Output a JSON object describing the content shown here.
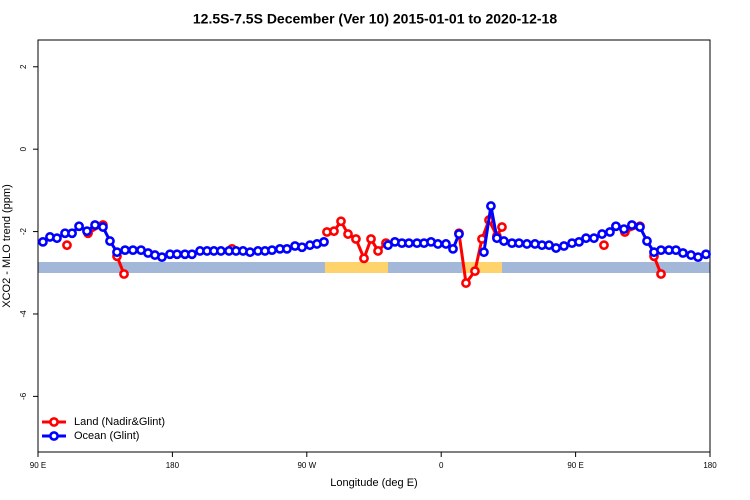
{
  "chart_data": {
    "type": "line",
    "title": "12.5S-7.5S December (Ver 10)   2015-01-01 to 2020-12-18",
    "x_label": "Longitude (deg E)",
    "y_label": "XCO2 - MLO trend (ppm)",
    "xlim": [
      90,
      540
    ],
    "ylim": [
      -7.35,
      2.65
    ],
    "xticks": [
      {
        "value": 90,
        "label": "90 E"
      },
      180,
      {
        "value": 270,
        "label": "90 W"
      },
      {
        "value": 360,
        "label": "0"
      },
      {
        "value": 450,
        "label": "90 E"
      },
      {
        "value": 540,
        "label": "180"
      }
    ],
    "yticks": [
      2,
      0,
      -2,
      -4,
      -6
    ],
    "legend": "bottom-left",
    "series": [
      {
        "name": "Land (Nadir&Glint)",
        "color": "#ff0000",
        "x": [
          109.4,
          null,
          123.5,
          133.5,
          null,
          142.9,
          147.6,
          null,
          219.9,
          null,
          283.5,
          288.2,
          292.9,
          297.6,
          302.9,
          308.3,
          313.0,
          317.7,
          323.0,
          null,
          371.9,
          376.6,
          382.6,
          387.3,
          392.0,
          397.3,
          400.7,
          null,
          469.0,
          null,
          483.0,
          493.1,
          null,
          502.5,
          507.2
        ],
        "values": [
          -2.33,
          null,
          -2.04,
          -1.84,
          null,
          -2.6,
          -3.03,
          null,
          -2.42,
          null,
          -2.01,
          -1.99,
          -1.75,
          -2.06,
          -2.18,
          -2.65,
          -2.18,
          -2.47,
          -2.28,
          null,
          -2.04,
          -3.25,
          -2.96,
          -2.18,
          -1.72,
          -2.11,
          -1.89,
          null,
          -2.33,
          null,
          -2.01,
          -1.87,
          null,
          -2.6,
          -3.03
        ]
      },
      {
        "name": "Ocean (Glint)",
        "color": "#0000ff",
        "x": [
          93.3,
          98.0,
          102.7,
          108.1,
          112.8,
          117.5,
          122.8,
          128.2,
          133.5,
          138.2,
          142.9,
          148.3,
          153.6,
          159.0,
          163.7,
          168.3,
          173.0,
          178.4,
          183.1,
          188.4,
          193.1,
          198.5,
          203.2,
          207.8,
          212.5,
          217.9,
          222.6,
          227.3,
          232.0,
          237.3,
          242.0,
          246.7,
          252.0,
          256.7,
          262.1,
          266.8,
          272.1,
          276.8,
          281.5,
          null,
          324.4,
          329.0,
          333.7,
          338.4,
          343.8,
          348.5,
          353.2,
          357.8,
          363.2,
          367.9,
          371.9,
          null,
          388.6,
          393.3,
          397.3,
          402.0,
          407.4,
          412.1,
          417.4,
          422.8,
          427.5,
          432.2,
          436.9,
          442.2,
          447.6,
          452.3,
          457.0,
          462.3,
          467.7,
          473.0,
          477.0,
          482.4,
          487.7,
          493.1,
          497.8,
          502.5,
          507.2,
          512.5,
          517.2,
          521.9,
          527.3,
          532.0,
          537.3
        ],
        "values": [
          -2.25,
          -2.13,
          -2.16,
          -2.04,
          -2.04,
          -1.87,
          -1.99,
          -1.84,
          -1.89,
          -2.23,
          -2.5,
          -2.45,
          -2.45,
          -2.45,
          -2.52,
          -2.57,
          -2.62,
          -2.55,
          -2.55,
          -2.55,
          -2.55,
          -2.47,
          -2.47,
          -2.47,
          -2.47,
          -2.47,
          -2.47,
          -2.47,
          -2.5,
          -2.47,
          -2.47,
          -2.45,
          -2.42,
          -2.42,
          -2.35,
          -2.38,
          -2.33,
          -2.3,
          -2.25,
          null,
          -2.33,
          -2.25,
          -2.28,
          -2.28,
          -2.28,
          -2.28,
          -2.25,
          -2.3,
          -2.3,
          -2.42,
          -2.06,
          null,
          -2.5,
          -1.38,
          -2.16,
          -2.23,
          -2.28,
          -2.28,
          -2.3,
          -2.3,
          -2.33,
          -2.33,
          -2.4,
          -2.35,
          -2.28,
          -2.25,
          -2.16,
          -2.16,
          -2.06,
          -2.01,
          -1.87,
          -1.94,
          -1.84,
          -1.89,
          -2.23,
          -2.5,
          -2.45,
          -2.45,
          -2.45,
          -2.52,
          -2.57,
          -2.62,
          -2.55
        ]
      }
    ]
  }
}
